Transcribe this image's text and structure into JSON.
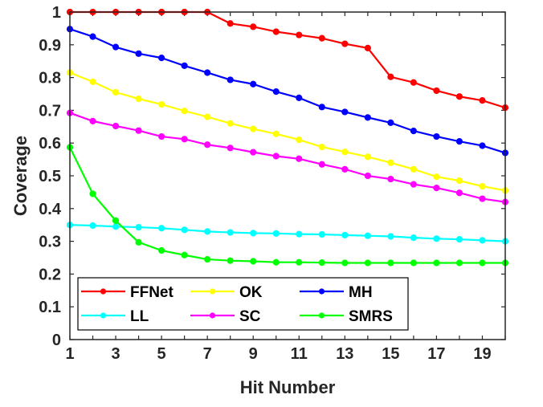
{
  "chart_data": {
    "type": "line",
    "xlabel": "Hit Number",
    "ylabel": "Coverage",
    "xlim": [
      1,
      20
    ],
    "ylim": [
      0,
      1
    ],
    "x_ticks": [
      1,
      3,
      5,
      7,
      9,
      11,
      13,
      15,
      17,
      19
    ],
    "y_ticks": [
      "0",
      "0.1",
      "0.2",
      "0.3",
      "0.4",
      "0.5",
      "0.6",
      "0.7",
      "0.8",
      "0.9",
      "1"
    ],
    "grid": false,
    "legend_placement": "bottom-left",
    "x": [
      1,
      2,
      3,
      4,
      5,
      6,
      7,
      8,
      9,
      10,
      11,
      12,
      13,
      14,
      15,
      16,
      17,
      18,
      19,
      20
    ],
    "series": [
      {
        "name": "FFNet",
        "color": "#ff0000",
        "values": [
          1.0,
          1.0,
          1.0,
          1.0,
          1.0,
          1.0,
          1.0,
          0.965,
          0.955,
          0.94,
          0.93,
          0.92,
          0.903,
          0.89,
          0.802,
          0.785,
          0.76,
          0.742,
          0.73,
          0.708
        ]
      },
      {
        "name": "OK",
        "color": "#ffff00",
        "values": [
          0.815,
          0.787,
          0.755,
          0.735,
          0.718,
          0.698,
          0.68,
          0.66,
          0.643,
          0.628,
          0.61,
          0.588,
          0.573,
          0.558,
          0.54,
          0.52,
          0.497,
          0.485,
          0.468,
          0.455
        ]
      },
      {
        "name": "MH",
        "color": "#0000ff",
        "values": [
          0.948,
          0.925,
          0.893,
          0.873,
          0.86,
          0.836,
          0.815,
          0.793,
          0.78,
          0.757,
          0.738,
          0.71,
          0.695,
          0.678,
          0.662,
          0.637,
          0.62,
          0.605,
          0.592,
          0.57
        ]
      },
      {
        "name": "LL",
        "color": "#00ffff",
        "values": [
          0.35,
          0.348,
          0.345,
          0.343,
          0.34,
          0.335,
          0.33,
          0.327,
          0.325,
          0.324,
          0.322,
          0.321,
          0.319,
          0.317,
          0.315,
          0.311,
          0.308,
          0.306,
          0.303,
          0.3
        ]
      },
      {
        "name": "SC",
        "color": "#ff00ff",
        "values": [
          0.692,
          0.667,
          0.652,
          0.638,
          0.62,
          0.612,
          0.595,
          0.585,
          0.572,
          0.56,
          0.552,
          0.535,
          0.52,
          0.5,
          0.49,
          0.474,
          0.463,
          0.448,
          0.43,
          0.42
        ]
      },
      {
        "name": "SMRS",
        "color": "#00ff00",
        "values": [
          0.587,
          0.445,
          0.363,
          0.297,
          0.272,
          0.258,
          0.245,
          0.241,
          0.239,
          0.236,
          0.236,
          0.235,
          0.234,
          0.234,
          0.234,
          0.234,
          0.234,
          0.234,
          0.234,
          0.234
        ]
      }
    ]
  }
}
